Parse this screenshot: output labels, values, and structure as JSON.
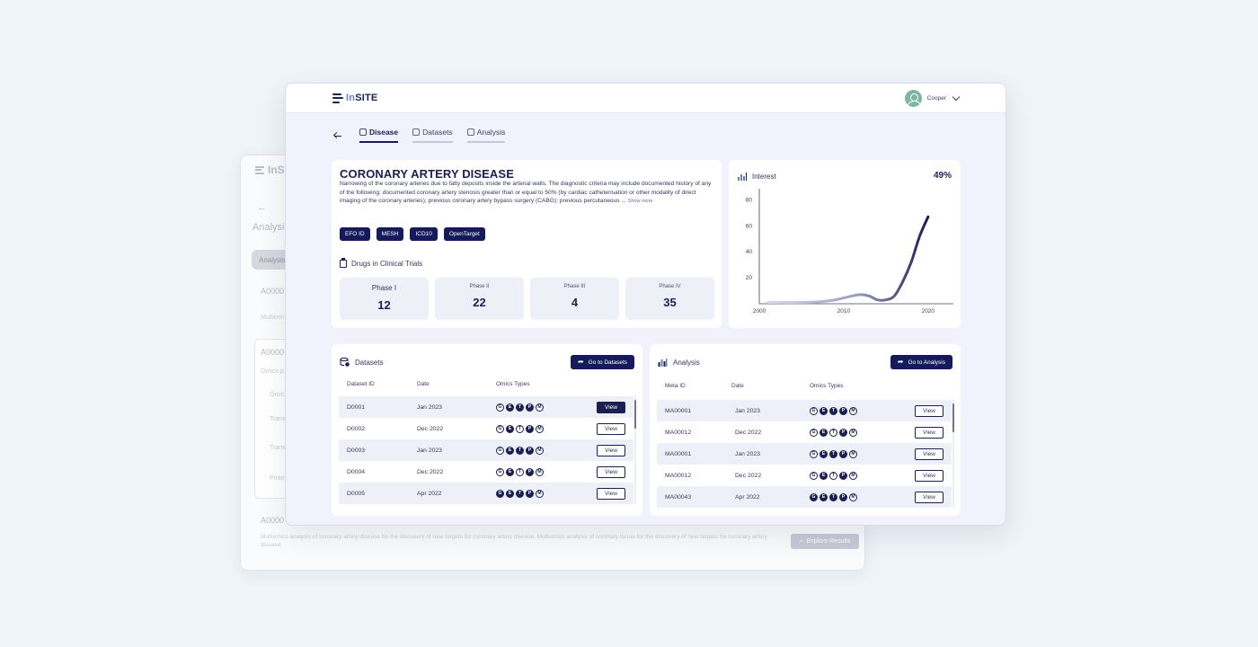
{
  "app": {
    "name_prefix": "In",
    "name_suffix": "SITE"
  },
  "back_window": {
    "logo": "InSI",
    "title": "Analysis",
    "chip": "Analysis",
    "ids": [
      "A0000",
      "A0000",
      "A0000"
    ],
    "labels": [
      "Multiomi",
      "Omics p",
      "Omics",
      "Transc",
      "Transc",
      "Protei"
    ],
    "description": "Multiomics analysis of coronary artery disease for the discovery of new targets for coronary artery disease. Multiomics analysis of coronary tissue for the discovery of new targets for coronary artery disease.",
    "explore_label": "Explore Results"
  },
  "user": {
    "name": "Cooper"
  },
  "tabs": [
    {
      "label": "Disease",
      "icon": "disease-icon"
    },
    {
      "label": "Datasets",
      "icon": "datasets-icon"
    },
    {
      "label": "Analysis",
      "icon": "analysis-icon"
    }
  ],
  "disease": {
    "title": "CORONARY ARTERY DISEASE",
    "description": "Narrowing of the coronary arteries due to fatty deposits inside the arterial walls. The diagnostic criteria may include documented history of any of the following: documented coronary artery stenosis greater than or equal to 50% (by cardiac catheterisation or other modality of direct imaging of the coronary arteries); previous coronary artery bypass surgery (CABG); previous percutaneous ...",
    "show_more": "Show more",
    "tags": [
      "EFO ID",
      "MESH",
      "ICD10",
      "OpenTarget"
    ],
    "drugs_heading": "Drugs in Clinical Trials",
    "phases": [
      {
        "label": "Phase I",
        "value": "12"
      },
      {
        "label": "Phase II",
        "value": "22"
      },
      {
        "label": "Phase III",
        "value": "4"
      },
      {
        "label": "Phase IV",
        "value": "35"
      }
    ]
  },
  "interest": {
    "heading": "Interest",
    "value": "49%"
  },
  "chart_data": {
    "type": "line",
    "title": "",
    "xlabel": "",
    "ylabel": "",
    "xlim": [
      2000,
      2023
    ],
    "ylim": [
      0,
      90
    ],
    "xticks": [
      2000,
      2010,
      2020
    ],
    "yticks": [
      20,
      40,
      60,
      80
    ],
    "grid": false,
    "series": [
      {
        "x": [
          2001,
          2003,
          2005,
          2007,
          2009,
          2011,
          2012,
          2013,
          2014,
          2015,
          2016,
          2017,
          2018,
          2019,
          2020
        ],
        "y": [
          1,
          1,
          1,
          1.5,
          3,
          6,
          7,
          6,
          3,
          3,
          6,
          17,
          32,
          52,
          67
        ]
      }
    ],
    "colors": {
      "line_start": "#d6d8e6",
      "line_end": "#1b1f52"
    }
  },
  "datasets": {
    "heading": "Datasets",
    "go_label": "Go to Datasets",
    "columns": [
      "Dataset ID",
      "Date",
      "Omics Types"
    ],
    "omics_letters": [
      "G",
      "E",
      "T",
      "P",
      "M"
    ],
    "view_label": "View",
    "rows": [
      {
        "id": "D0001",
        "date": "Jan 2023"
      },
      {
        "id": "D0002",
        "date": "Dec 2022"
      },
      {
        "id": "D0003",
        "date": "Jan 2023"
      },
      {
        "id": "D0004",
        "date": "Dec 2022"
      },
      {
        "id": "D0005",
        "date": "Apr 2022"
      }
    ]
  },
  "analysis": {
    "heading": "Analysis",
    "go_label": "Go to Analysis",
    "columns": [
      "Meta ID",
      "Date",
      "Omics Types"
    ],
    "view_label": "View",
    "rows": [
      {
        "id": "MA00001",
        "date": "Jan 2023"
      },
      {
        "id": "MA00012",
        "date": "Dec 2022"
      },
      {
        "id": "MA00001",
        "date": "Jan 2023"
      },
      {
        "id": "MA00012",
        "date": "Dec 2022"
      },
      {
        "id": "MA00043",
        "date": "Apr 2022"
      }
    ]
  }
}
